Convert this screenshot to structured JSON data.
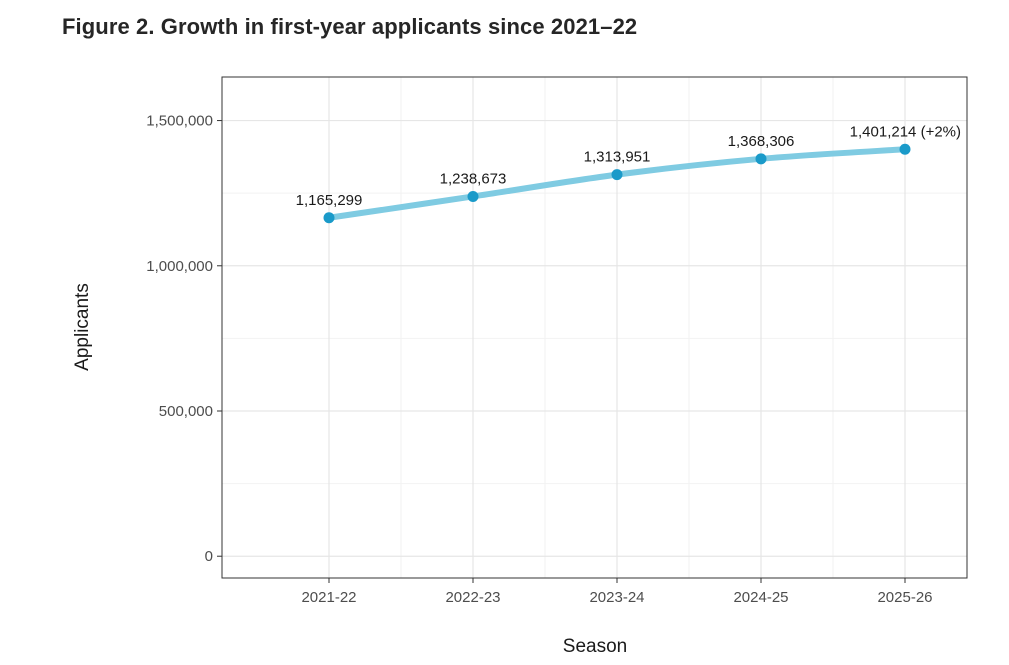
{
  "figure": {
    "title": "Figure 2. Growth in first-year applicants since 2021–22"
  },
  "chart_data": {
    "type": "line",
    "title": "Figure 2. Growth in first-year applicants since 2021–22",
    "xlabel": "Season",
    "ylabel": "Applicants",
    "categories": [
      "2021-22",
      "2022-23",
      "2023-24",
      "2024-25",
      "2025-26"
    ],
    "series": [
      {
        "name": "Applicants",
        "values": [
          1165299,
          1238673,
          1313951,
          1368306,
          1401214
        ],
        "data_labels": [
          "1,165,299",
          "1,238,673",
          "1,313,951",
          "1,368,306",
          "1,401,214 (+2%)"
        ]
      }
    ],
    "ylim": [
      -75000,
      1650000
    ],
    "yticks": [
      0,
      500000,
      1000000,
      1500000
    ],
    "ytick_labels": [
      "0",
      "500,000",
      "1,000,000",
      "1,500,000"
    ],
    "grid": true,
    "legend": "none",
    "colors": {
      "line": "#7fcbe2",
      "point": "#1a9ac9",
      "panel_border": "#333333",
      "grid_major": "#e6e6e6",
      "grid_minor": "#f2f2f2"
    }
  }
}
